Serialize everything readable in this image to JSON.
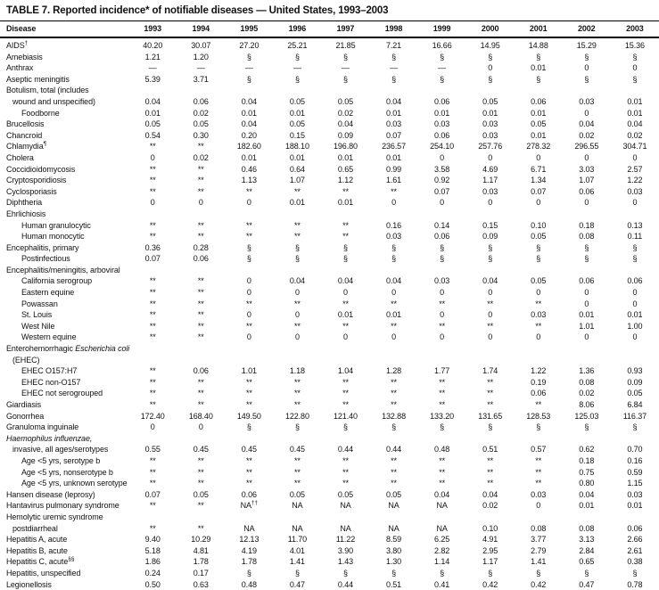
{
  "title": "TABLE 7. Reported incidence* of notifiable diseases — United States, 1993–2003",
  "table": {
    "disease_header": "Disease",
    "years": [
      "1993",
      "1994",
      "1995",
      "1996",
      "1997",
      "1998",
      "1999",
      "2000",
      "2001",
      "2002",
      "2003"
    ],
    "rows": [
      {
        "ind": 0,
        "p": [
          {
            "t": "AIDS"
          },
          {
            "t": "†",
            "s": true
          }
        ],
        "v": [
          "40.20",
          "30.07",
          "27.20",
          "25.21",
          "21.85",
          "7.21",
          "16.66",
          "14.95",
          "14.88",
          "15.29",
          "15.36"
        ]
      },
      {
        "ind": 0,
        "p": [
          {
            "t": "Amebiasis"
          }
        ],
        "v": [
          "1.21",
          "1.20",
          "§",
          "§",
          "§",
          "§",
          "§",
          "§",
          "§",
          "§",
          "§"
        ]
      },
      {
        "ind": 0,
        "p": [
          {
            "t": "Anthrax"
          }
        ],
        "v": [
          "—",
          "—",
          "—",
          "—",
          "—",
          "—",
          "—",
          "0",
          "0.01",
          "0",
          "0"
        ]
      },
      {
        "ind": 0,
        "p": [
          {
            "t": "Aseptic meningitis"
          }
        ],
        "v": [
          "5.39",
          "3.71",
          "§",
          "§",
          "§",
          "§",
          "§",
          "§",
          "§",
          "§",
          "§"
        ]
      },
      {
        "ind": 0,
        "p": [
          {
            "t": "Botulism, total (includes"
          }
        ],
        "v": null
      },
      {
        "ind": 1,
        "p": [
          {
            "t": "wound and unspecified)"
          }
        ],
        "v": [
          "0.04",
          "0.06",
          "0.04",
          "0.05",
          "0.05",
          "0.04",
          "0.06",
          "0.05",
          "0.06",
          "0.03",
          "0.01"
        ]
      },
      {
        "ind": 2,
        "p": [
          {
            "t": "Foodborne"
          }
        ],
        "v": [
          "0.01",
          "0.02",
          "0.01",
          "0.01",
          "0.02",
          "0.01",
          "0.01",
          "0.01",
          "0.01",
          "0",
          "0.01"
        ]
      },
      {
        "ind": 0,
        "p": [
          {
            "t": "Brucellosis"
          }
        ],
        "v": [
          "0.05",
          "0.05",
          "0.04",
          "0.05",
          "0.04",
          "0.03",
          "0.03",
          "0.03",
          "0.05",
          "0.04",
          "0.04"
        ]
      },
      {
        "ind": 0,
        "p": [
          {
            "t": "Chancroid"
          }
        ],
        "v": [
          "0.54",
          "0.30",
          "0.20",
          "0.15",
          "0.09",
          "0.07",
          "0.06",
          "0.03",
          "0.01",
          "0.02",
          "0.02"
        ]
      },
      {
        "ind": 0,
        "p": [
          {
            "t": "Chlamydia"
          },
          {
            "t": "¶",
            "s": true
          }
        ],
        "v": [
          "**",
          "**",
          "182.60",
          "188.10",
          "196.80",
          "236.57",
          "254.10",
          "257.76",
          "278.32",
          "296.55",
          "304.71"
        ]
      },
      {
        "ind": 0,
        "p": [
          {
            "t": "Cholera"
          }
        ],
        "v": [
          "0",
          "0.02",
          "0.01",
          "0.01",
          "0.01",
          "0.01",
          "0",
          "0",
          "0",
          "0",
          "0"
        ]
      },
      {
        "ind": 0,
        "p": [
          {
            "t": "Coccidioidomycosis"
          }
        ],
        "v": [
          "**",
          "**",
          "0.46",
          "0.64",
          "0.65",
          "0.99",
          "3.58",
          "4.69",
          "6.71",
          "3.03",
          "2.57"
        ]
      },
      {
        "ind": 0,
        "p": [
          {
            "t": "Cryptosporidiosis"
          }
        ],
        "v": [
          "**",
          "**",
          "1.13",
          "1.07",
          "1.12",
          "1.61",
          "0.92",
          "1.17",
          "1.34",
          "1.07",
          "1.22"
        ]
      },
      {
        "ind": 0,
        "p": [
          {
            "t": "Cyclosporiasis"
          }
        ],
        "v": [
          "**",
          "**",
          "**",
          "**",
          "**",
          "**",
          "0.07",
          "0.03",
          "0.07",
          "0.06",
          "0.03"
        ]
      },
      {
        "ind": 0,
        "p": [
          {
            "t": "Diphtheria"
          }
        ],
        "v": [
          "0",
          "0",
          "0",
          "0.01",
          "0.01",
          "0",
          "0",
          "0",
          "0",
          "0",
          "0"
        ]
      },
      {
        "ind": 0,
        "p": [
          {
            "t": "Ehrlichiosis"
          }
        ],
        "v": null
      },
      {
        "ind": 2,
        "p": [
          {
            "t": "Human granulocytic"
          }
        ],
        "v": [
          "**",
          "**",
          "**",
          "**",
          "**",
          "0.16",
          "0.14",
          "0.15",
          "0.10",
          "0.18",
          "0.13"
        ]
      },
      {
        "ind": 2,
        "p": [
          {
            "t": "Human monocytic"
          }
        ],
        "v": [
          "**",
          "**",
          "**",
          "**",
          "**",
          "0.03",
          "0.06",
          "0.09",
          "0.05",
          "0.08",
          "0.11"
        ]
      },
      {
        "ind": 0,
        "p": [
          {
            "t": "Encephalitis, primary"
          }
        ],
        "v": [
          "0.36",
          "0.28",
          "§",
          "§",
          "§",
          "§",
          "§",
          "§",
          "§",
          "§",
          "§"
        ]
      },
      {
        "ind": 2,
        "p": [
          {
            "t": "Postinfectious"
          }
        ],
        "v": [
          "0.07",
          "0.06",
          "§",
          "§",
          "§",
          "§",
          "§",
          "§",
          "§",
          "§",
          "§"
        ]
      },
      {
        "ind": 0,
        "p": [
          {
            "t": "Encephalitis/meningitis, arboviral"
          }
        ],
        "v": null
      },
      {
        "ind": 2,
        "p": [
          {
            "t": "California serogroup"
          }
        ],
        "v": [
          "**",
          "**",
          "0",
          "0.04",
          "0.04",
          "0.04",
          "0.03",
          "0.04",
          "0.05",
          "0.06",
          "0.06"
        ]
      },
      {
        "ind": 2,
        "p": [
          {
            "t": "Eastern equine"
          }
        ],
        "v": [
          "**",
          "**",
          "0",
          "0",
          "0",
          "0",
          "0",
          "0",
          "0",
          "0",
          "0"
        ]
      },
      {
        "ind": 2,
        "p": [
          {
            "t": "Powassan"
          }
        ],
        "v": [
          "**",
          "**",
          "**",
          "**",
          "**",
          "**",
          "**",
          "**",
          "**",
          "0",
          "0"
        ]
      },
      {
        "ind": 2,
        "p": [
          {
            "t": "St. Louis"
          }
        ],
        "v": [
          "**",
          "**",
          "0",
          "0",
          "0.01",
          "0.01",
          "0",
          "0",
          "0.03",
          "0.01",
          "0.01"
        ]
      },
      {
        "ind": 2,
        "p": [
          {
            "t": "West Nile"
          }
        ],
        "v": [
          "**",
          "**",
          "**",
          "**",
          "**",
          "**",
          "**",
          "**",
          "**",
          "1.01",
          "1.00"
        ]
      },
      {
        "ind": 2,
        "p": [
          {
            "t": "Western equine"
          }
        ],
        "v": [
          "**",
          "**",
          "0",
          "0",
          "0",
          "0",
          "0",
          "0",
          "0",
          "0",
          "0"
        ]
      },
      {
        "ind": 0,
        "p": [
          {
            "t": "Enterohemorrhagic "
          },
          {
            "t": "Escherichia coli",
            "i": true
          }
        ],
        "v": null
      },
      {
        "ind": 1,
        "p": [
          {
            "t": "(EHEC)"
          }
        ],
        "v": null
      },
      {
        "ind": 2,
        "p": [
          {
            "t": "EHEC O157:H7"
          }
        ],
        "v": [
          "**",
          "0.06",
          "1.01",
          "1.18",
          "1.04",
          "1.28",
          "1.77",
          "1.74",
          "1.22",
          "1.36",
          "0.93"
        ]
      },
      {
        "ind": 2,
        "p": [
          {
            "t": "EHEC non-O157"
          }
        ],
        "v": [
          "**",
          "**",
          "**",
          "**",
          "**",
          "**",
          "**",
          "**",
          "0.19",
          "0.08",
          "0.09"
        ]
      },
      {
        "ind": 2,
        "p": [
          {
            "t": "EHEC not serogrouped"
          }
        ],
        "v": [
          "**",
          "**",
          "**",
          "**",
          "**",
          "**",
          "**",
          "**",
          "0.06",
          "0.02",
          "0.05"
        ]
      },
      {
        "ind": 0,
        "p": [
          {
            "t": "Giardiasis"
          }
        ],
        "v": [
          "**",
          "**",
          "**",
          "**",
          "**",
          "**",
          "**",
          "**",
          "**",
          "8.06",
          "6.84"
        ]
      },
      {
        "ind": 0,
        "p": [
          {
            "t": "Gonorrhea"
          }
        ],
        "v": [
          "172.40",
          "168.40",
          "149.50",
          "122.80",
          "121.40",
          "132.88",
          "133.20",
          "131.65",
          "128.53",
          "125.03",
          "116.37"
        ]
      },
      {
        "ind": 0,
        "p": [
          {
            "t": "Granuloma inguinale"
          }
        ],
        "v": [
          "0",
          "0",
          "§",
          "§",
          "§",
          "§",
          "§",
          "§",
          "§",
          "§",
          "§"
        ]
      },
      {
        "ind": 0,
        "p": [
          {
            "t": "Haemophilus influenzae,",
            "i": true
          }
        ],
        "v": null
      },
      {
        "ind": 1,
        "p": [
          {
            "t": "invasive, all ages/serotypes"
          }
        ],
        "v": [
          "0.55",
          "0.45",
          "0.45",
          "0.45",
          "0.44",
          "0.44",
          "0.48",
          "0.51",
          "0.57",
          "0.62",
          "0.70"
        ]
      },
      {
        "ind": 2,
        "p": [
          {
            "t": "Age <5 yrs, serotype b"
          }
        ],
        "v": [
          "**",
          "**",
          "**",
          "**",
          "**",
          "**",
          "**",
          "**",
          "**",
          "0.18",
          "0.16"
        ]
      },
      {
        "ind": 2,
        "p": [
          {
            "t": "Age <5 yrs, nonserotype b"
          }
        ],
        "v": [
          "**",
          "**",
          "**",
          "**",
          "**",
          "**",
          "**",
          "**",
          "**",
          "0.75",
          "0.59"
        ]
      },
      {
        "ind": 2,
        "p": [
          {
            "t": "Age <5 yrs, unknown serotype"
          }
        ],
        "v": [
          "**",
          "**",
          "**",
          "**",
          "**",
          "**",
          "**",
          "**",
          "**",
          "0.80",
          "1.15"
        ]
      },
      {
        "ind": 0,
        "p": [
          {
            "t": "Hansen disease (leprosy)"
          }
        ],
        "v": [
          "0.07",
          "0.05",
          "0.06",
          "0.05",
          "0.05",
          "0.05",
          "0.04",
          "0.04",
          "0.03",
          "0.04",
          "0.03"
        ]
      },
      {
        "ind": 0,
        "p": [
          {
            "t": "Hantavirus pulmonary syndrome"
          }
        ],
        "v": [
          "**",
          "**",
          {
            "t": "NA",
            "s": "††"
          },
          "NA",
          "NA",
          "NA",
          "NA",
          "0.02",
          "0",
          "0.01",
          "0.01"
        ]
      },
      {
        "ind": 0,
        "p": [
          {
            "t": "Hemolytic uremic syndrome"
          }
        ],
        "v": null
      },
      {
        "ind": 1,
        "p": [
          {
            "t": "postdiarrheal"
          }
        ],
        "v": [
          "**",
          "**",
          "NA",
          "NA",
          "NA",
          "NA",
          "NA",
          "0.10",
          "0.08",
          "0.08",
          "0.06"
        ]
      },
      {
        "ind": 0,
        "p": [
          {
            "t": "Hepatitis A, acute"
          }
        ],
        "v": [
          "9.40",
          "10.29",
          "12.13",
          "11.70",
          "11.22",
          "8.59",
          "6.25",
          "4.91",
          "3.77",
          "3.13",
          "2.66"
        ]
      },
      {
        "ind": 0,
        "p": [
          {
            "t": "Hepatitis B, acute"
          }
        ],
        "v": [
          "5.18",
          "4.81",
          "4.19",
          "4.01",
          "3.90",
          "3.80",
          "2.82",
          "2.95",
          "2.79",
          "2.84",
          "2.61"
        ]
      },
      {
        "ind": 0,
        "p": [
          {
            "t": "Hepatitis C, acute"
          },
          {
            "t": "§§",
            "s": true
          }
        ],
        "v": [
          "1.86",
          "1.78",
          "1.78",
          "1.41",
          "1.43",
          "1.30",
          "1.14",
          "1.17",
          "1.41",
          "0.65",
          "0.38"
        ]
      },
      {
        "ind": 0,
        "p": [
          {
            "t": "Hepatitis, unspecified"
          }
        ],
        "v": [
          "0.24",
          "0.17",
          "§",
          "§",
          "§",
          "§",
          "§",
          "§",
          "§",
          "§",
          "§"
        ]
      },
      {
        "ind": 0,
        "p": [
          {
            "t": "Legionellosis"
          }
        ],
        "v": [
          "0.50",
          "0.63",
          "0.48",
          "0.47",
          "0.44",
          "0.51",
          "0.41",
          "0.42",
          "0.42",
          "0.47",
          "0.78"
        ]
      }
    ]
  }
}
